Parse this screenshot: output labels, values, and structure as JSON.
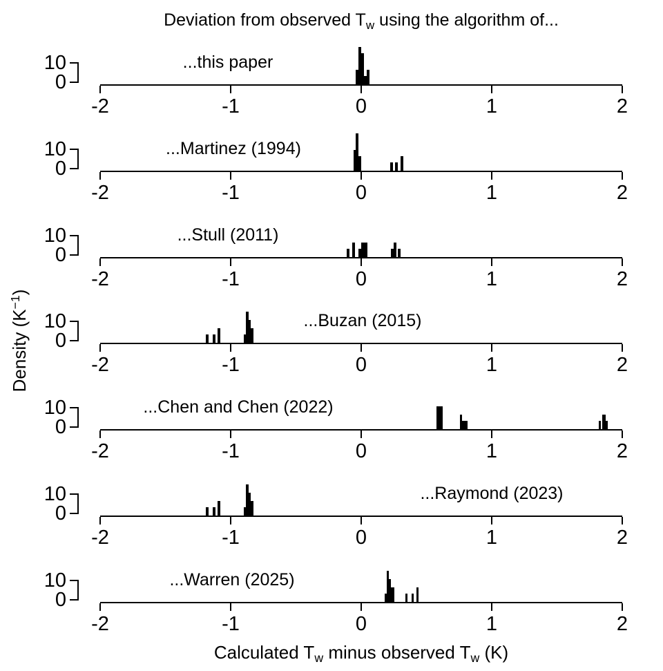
{
  "labels": {
    "title_pre": "Deviation from observed T",
    "title_sub": "w",
    "title_post": " using the algorithm of...",
    "xlabel_p1": "Calculated T",
    "xlabel_s1": "w",
    "xlabel_p2": " minus observed T",
    "xlabel_s2": "w",
    "xlabel_p3": " (K)",
    "ylabel_pre": "Density (K",
    "ylabel_sup": "−1",
    "ylabel_post": ")"
  },
  "chart_data": {
    "type": "bar",
    "subtype": "stacked-small-multiple-histograms",
    "title": "Deviation from observed Tw using the algorithm of...",
    "xlabel": "Calculated Tw minus observed Tw (K)",
    "ylabel": "Density (K^-1)",
    "xlim": [
      -2,
      2
    ],
    "x_ticks": [
      -2,
      -1,
      0,
      1,
      2
    ],
    "y_ticks": [
      10,
      0
    ],
    "ylim": [
      0,
      20
    ],
    "grid": false,
    "legend": "none",
    "bars_format": "[x_left_K, width_K, density_per_K]",
    "panels": [
      {
        "label": "...this paper",
        "label_x": -1.02,
        "bars": [
          [
            -0.04,
            0.02,
            7
          ],
          [
            -0.02,
            0.02,
            18
          ],
          [
            0.0,
            0.02,
            15
          ],
          [
            0.02,
            0.02,
            4
          ],
          [
            0.04,
            0.02,
            7
          ]
        ]
      },
      {
        "label": "...Martinez (1994)",
        "label_x": -0.98,
        "bars": [
          [
            -0.06,
            0.02,
            10
          ],
          [
            -0.04,
            0.02,
            18
          ],
          [
            -0.02,
            0.02,
            7
          ],
          [
            0.22,
            0.02,
            4
          ],
          [
            0.26,
            0.02,
            4
          ],
          [
            0.3,
            0.02,
            7
          ]
        ]
      },
      {
        "label": "...Stull (2011)",
        "label_x": -1.02,
        "bars": [
          [
            -0.11,
            0.02,
            4
          ],
          [
            -0.07,
            0.02,
            7
          ],
          [
            -0.02,
            0.02,
            4
          ],
          [
            0.0,
            0.05,
            7
          ],
          [
            0.23,
            0.02,
            4
          ],
          [
            0.25,
            0.02,
            7
          ],
          [
            0.28,
            0.02,
            4
          ]
        ]
      },
      {
        "label": "...Buzan (2015)",
        "label_x": 0.01,
        "bars": [
          [
            -1.19,
            0.02,
            4
          ],
          [
            -1.14,
            0.02,
            4
          ],
          [
            -1.1,
            0.02,
            7
          ],
          [
            -0.9,
            0.02,
            4
          ],
          [
            -0.885,
            0.02,
            15
          ],
          [
            -0.867,
            0.02,
            11
          ],
          [
            -0.85,
            0.025,
            7
          ]
        ]
      },
      {
        "label": "...Chen and Chen (2022)",
        "label_x": -0.94,
        "bars": [
          [
            0.575,
            0.048,
            11
          ],
          [
            0.755,
            0.018,
            7
          ],
          [
            0.773,
            0.042,
            4
          ],
          [
            1.82,
            0.018,
            4
          ],
          [
            1.848,
            0.025,
            7
          ],
          [
            1.873,
            0.016,
            4
          ]
        ]
      },
      {
        "label": "...Raymond (2023)",
        "label_x": 1.0,
        "bars": [
          [
            -1.19,
            0.02,
            4
          ],
          [
            -1.14,
            0.02,
            4
          ],
          [
            -1.1,
            0.02,
            7
          ],
          [
            -0.9,
            0.02,
            4
          ],
          [
            -0.885,
            0.02,
            15
          ],
          [
            -0.867,
            0.02,
            11
          ],
          [
            -0.85,
            0.025,
            7
          ]
        ]
      },
      {
        "label": "...Warren (2025)",
        "label_x": -0.99,
        "bars": [
          [
            0.18,
            0.018,
            4
          ],
          [
            0.198,
            0.016,
            15
          ],
          [
            0.214,
            0.016,
            11
          ],
          [
            0.23,
            0.024,
            7
          ],
          [
            0.34,
            0.018,
            4
          ],
          [
            0.386,
            0.018,
            4
          ],
          [
            0.423,
            0.018,
            7
          ]
        ]
      }
    ]
  }
}
